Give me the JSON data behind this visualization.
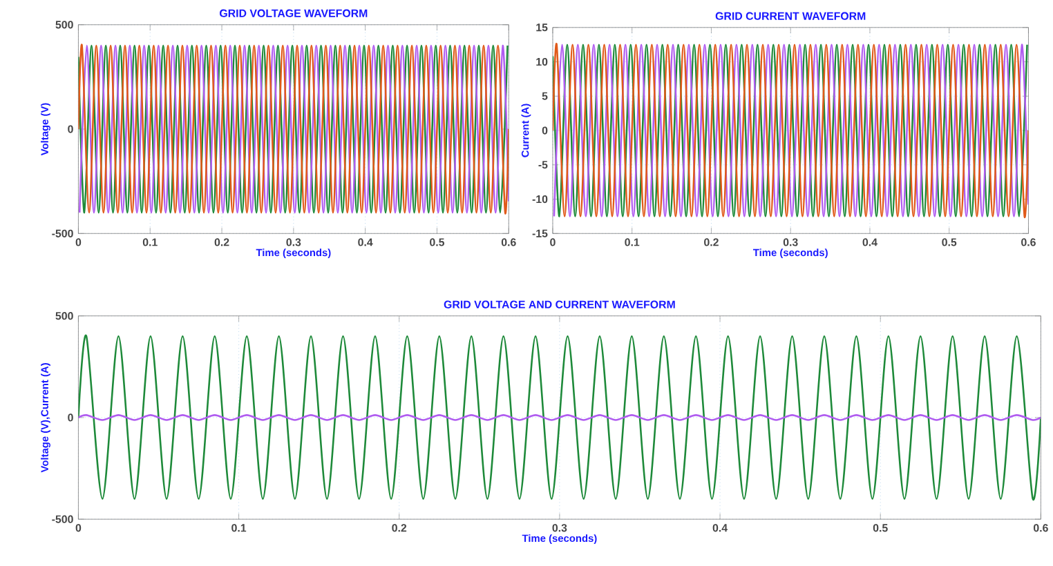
{
  "chart_data": [
    {
      "type": "line",
      "title": "GRID VOLTAGE WAVEFORM",
      "xlabel": "Time (seconds)",
      "ylabel": "Voltage (V)",
      "xlim": [
        0,
        0.6
      ],
      "ylim": [
        -500,
        500
      ],
      "xticks": [
        0,
        0.1,
        0.2,
        0.3,
        0.4,
        0.5,
        0.6
      ],
      "yticks": [
        -500,
        0,
        500
      ],
      "grid": true,
      "x": [
        0,
        0.005,
        0.015,
        0.025,
        0.035,
        0.045,
        0.055,
        0.065,
        0.075,
        0.085,
        0.095,
        0.105,
        0.115,
        0.125,
        0.135,
        0.145,
        0.155,
        0.165,
        0.175,
        0.185,
        0.195,
        0.205,
        0.215,
        0.225,
        0.235,
        0.245,
        0.255,
        0.265,
        0.275,
        0.285,
        0.295,
        0.305,
        0.315,
        0.325,
        0.335,
        0.345,
        0.355,
        0.365,
        0.375,
        0.385,
        0.395,
        0.405,
        0.415,
        0.425,
        0.435,
        0.445,
        0.455,
        0.465,
        0.475,
        0.485,
        0.495,
        0.505,
        0.515,
        0.525,
        0.535,
        0.545,
        0.555,
        0.565,
        0.575,
        0.585,
        0.595,
        0.6
      ],
      "series": [
        {
          "color": "#1e8a3a",
          "x": [
            0,
            0.0083,
            0.0183,
            0.0283,
            0.0383,
            0.0483,
            0.0583,
            0.0683,
            0.0783,
            0.0883,
            0.0983,
            0.1083,
            0.1183,
            0.1283,
            0.1383,
            0.1483,
            0.1583,
            0.1683,
            0.1783,
            0.1883,
            0.1983,
            0.2083,
            0.2183,
            0.2283,
            0.2383,
            0.2483,
            0.2583,
            0.2683,
            0.2783,
            0.2883,
            0.2983,
            0.3083,
            0.3183,
            0.3283,
            0.3383,
            0.3483,
            0.3583,
            0.3683,
            0.3783,
            0.3883,
            0.3983,
            0.4083,
            0.4183,
            0.4283,
            0.4383,
            0.4483,
            0.4583,
            0.4683,
            0.4783,
            0.4883,
            0.4983,
            0.5083,
            0.5183,
            0.5283,
            0.5383,
            0.5483,
            0.5583,
            0.5683,
            0.5783,
            0.5883,
            0.5983
          ],
          "values": [
            346,
            -400,
            400,
            -400,
            400,
            -400,
            400,
            -400,
            400,
            -400,
            400,
            -400,
            400,
            -400,
            400,
            -400,
            400,
            -400,
            400,
            -400,
            400,
            -400,
            400,
            -400,
            400,
            -400,
            400,
            -400,
            400,
            -400,
            400,
            -400,
            400,
            -400,
            400,
            -400,
            400,
            -400,
            400,
            -400,
            400,
            -400,
            400,
            -400,
            400,
            -400,
            400,
            -400,
            400,
            -400,
            400,
            -400,
            400,
            -400,
            400,
            -400,
            400,
            -400,
            400,
            -400,
            400
          ]
        },
        {
          "color": "#b05cf0",
          "x": [
            0.0017,
            0.0117,
            0.0217,
            0.0317,
            0.0417,
            0.0517,
            0.0617,
            0.0717,
            0.0817,
            0.0917,
            0.1017,
            0.1117,
            0.1217,
            0.1317,
            0.1417,
            0.1517,
            0.1617,
            0.1717,
            0.1817,
            0.1917,
            0.2017,
            0.2117,
            0.2217,
            0.2317,
            0.2417,
            0.2517,
            0.2617,
            0.2717,
            0.2817,
            0.2917,
            0.3017,
            0.3117,
            0.3217,
            0.3317,
            0.3417,
            0.3517,
            0.3617,
            0.3717,
            0.3817,
            0.3917,
            0.4017,
            0.4117,
            0.4217,
            0.4317,
            0.4417,
            0.4517,
            0.4617,
            0.4717,
            0.4817,
            0.4917,
            0.5017,
            0.5117,
            0.5217,
            0.5317,
            0.5417,
            0.5517,
            0.5617,
            0.5717,
            0.5817,
            0.5917,
            0.6
          ],
          "values": [
            -400,
            400,
            -400,
            400,
            -400,
            400,
            -400,
            400,
            -400,
            400,
            -400,
            400,
            -400,
            400,
            -400,
            400,
            -400,
            400,
            -400,
            400,
            -400,
            400,
            -400,
            400,
            -400,
            400,
            -400,
            400,
            -400,
            400,
            -400,
            400,
            -400,
            400,
            -400,
            400,
            -400,
            400,
            -400,
            400,
            -400,
            400,
            -400,
            400,
            -400,
            400,
            -400,
            400,
            -400,
            400,
            -400,
            400,
            -400,
            400,
            -400,
            400,
            -400,
            400,
            -400,
            400,
            -346
          ]
        },
        {
          "color": "#e05a1a",
          "values": [
            0,
            400,
            -400,
            400,
            -400,
            400,
            -400,
            400,
            -400,
            400,
            -400,
            400,
            -400,
            400,
            -400,
            400,
            -400,
            400,
            -400,
            400,
            -400,
            400,
            -400,
            400,
            -400,
            400,
            -400,
            400,
            -400,
            400,
            -400,
            400,
            -400,
            400,
            -400,
            400,
            -400,
            400,
            -400,
            400,
            -400,
            400,
            -400,
            400,
            -400,
            400,
            -400,
            400,
            -400,
            400,
            -400,
            400,
            -400,
            400,
            -400,
            400,
            -400,
            400,
            -400,
            400,
            -400,
            0
          ]
        }
      ]
    },
    {
      "type": "line",
      "title": "GRID CURRENT WAVEFORM",
      "xlabel": "Time (seconds)",
      "ylabel": "Current (A)",
      "xlim": [
        0,
        0.6
      ],
      "ylim": [
        -15,
        15
      ],
      "xticks": [
        0,
        0.1,
        0.2,
        0.3,
        0.4,
        0.5,
        0.6
      ],
      "yticks": [
        -15,
        -10,
        -5,
        0,
        5,
        10,
        15
      ],
      "grid": true,
      "x": [
        0,
        0.005,
        0.015,
        0.025,
        0.035,
        0.045,
        0.055,
        0.065,
        0.075,
        0.085,
        0.095,
        0.105,
        0.115,
        0.125,
        0.135,
        0.145,
        0.155,
        0.165,
        0.175,
        0.185,
        0.195,
        0.205,
        0.215,
        0.225,
        0.235,
        0.245,
        0.255,
        0.265,
        0.275,
        0.285,
        0.295,
        0.305,
        0.315,
        0.325,
        0.335,
        0.345,
        0.355,
        0.365,
        0.375,
        0.385,
        0.395,
        0.405,
        0.415,
        0.425,
        0.435,
        0.445,
        0.455,
        0.465,
        0.475,
        0.485,
        0.495,
        0.505,
        0.515,
        0.525,
        0.535,
        0.545,
        0.555,
        0.565,
        0.575,
        0.585,
        0.595,
        0.6
      ],
      "series": [
        {
          "color": "#1e8a3a",
          "x": [
            0,
            0.0083,
            0.0183,
            0.0283,
            0.0383,
            0.0483,
            0.0583,
            0.0683,
            0.0783,
            0.0883,
            0.0983,
            0.1083,
            0.1183,
            0.1283,
            0.1383,
            0.1483,
            0.1583,
            0.1683,
            0.1783,
            0.1883,
            0.1983,
            0.2083,
            0.2183,
            0.2283,
            0.2383,
            0.2483,
            0.2583,
            0.2683,
            0.2783,
            0.2883,
            0.2983,
            0.3083,
            0.3183,
            0.3283,
            0.3383,
            0.3483,
            0.3583,
            0.3683,
            0.3783,
            0.3883,
            0.3983,
            0.4083,
            0.4183,
            0.4283,
            0.4383,
            0.4483,
            0.4583,
            0.4683,
            0.4783,
            0.4883,
            0.4983,
            0.5083,
            0.5183,
            0.5283,
            0.5383,
            0.5483,
            0.5583,
            0.5683,
            0.5783,
            0.5883,
            0.5983
          ],
          "values": [
            10.8,
            -12.5,
            12.5,
            -12.5,
            12.5,
            -12.5,
            12.5,
            -12.5,
            12.5,
            -12.5,
            12.5,
            -12.5,
            12.5,
            -12.5,
            12.5,
            -12.5,
            12.5,
            -12.5,
            12.5,
            -12.5,
            12.5,
            -12.5,
            12.5,
            -12.5,
            12.5,
            -12.5,
            12.5,
            -12.5,
            12.5,
            -12.5,
            12.5,
            -12.5,
            12.5,
            -12.5,
            12.5,
            -12.5,
            12.5,
            -12.5,
            12.5,
            -12.5,
            12.5,
            -12.5,
            12.5,
            -12.5,
            12.5,
            -12.5,
            12.5,
            -12.5,
            12.5,
            -12.5,
            12.5,
            -12.5,
            12.5,
            -12.5,
            12.5,
            -12.5,
            12.5,
            -12.5,
            12.5,
            -12.5,
            12.5
          ]
        },
        {
          "color": "#b05cf0",
          "x": [
            0.0017,
            0.0117,
            0.0217,
            0.0317,
            0.0417,
            0.0517,
            0.0617,
            0.0717,
            0.0817,
            0.0917,
            0.1017,
            0.1117,
            0.1217,
            0.1317,
            0.1417,
            0.1517,
            0.1617,
            0.1717,
            0.1817,
            0.1917,
            0.2017,
            0.2117,
            0.2217,
            0.2317,
            0.2417,
            0.2517,
            0.2617,
            0.2717,
            0.2817,
            0.2917,
            0.3017,
            0.3117,
            0.3217,
            0.3317,
            0.3417,
            0.3517,
            0.3617,
            0.3717,
            0.3817,
            0.3917,
            0.4017,
            0.4117,
            0.4217,
            0.4317,
            0.4417,
            0.4517,
            0.4617,
            0.4717,
            0.4817,
            0.4917,
            0.5017,
            0.5117,
            0.5217,
            0.5317,
            0.5417,
            0.5517,
            0.5617,
            0.5717,
            0.5817,
            0.5917,
            0.6
          ],
          "values": [
            -12.5,
            12.5,
            -12.5,
            12.5,
            -12.5,
            12.5,
            -12.5,
            12.5,
            -12.5,
            12.5,
            -12.5,
            12.5,
            -12.5,
            12.5,
            -12.5,
            12.5,
            -12.5,
            12.5,
            -12.5,
            12.5,
            -12.5,
            12.5,
            -12.5,
            12.5,
            -12.5,
            12.5,
            -12.5,
            12.5,
            -12.5,
            12.5,
            -12.5,
            12.5,
            -12.5,
            12.5,
            -12.5,
            12.5,
            -12.5,
            12.5,
            -12.5,
            12.5,
            -12.5,
            12.5,
            -12.5,
            12.5,
            -12.5,
            12.5,
            -12.5,
            12.5,
            -12.5,
            12.5,
            -12.5,
            12.5,
            -12.5,
            12.5,
            -12.5,
            12.5,
            -12.5,
            12.5,
            -12.5,
            12.5,
            -10.8
          ]
        },
        {
          "color": "#e05a1a",
          "values": [
            0,
            12.5,
            -12.5,
            12.5,
            -12.5,
            12.5,
            -12.5,
            12.5,
            -12.5,
            12.5,
            -12.5,
            12.5,
            -12.5,
            12.5,
            -12.5,
            12.5,
            -12.5,
            12.5,
            -12.5,
            12.5,
            -12.5,
            12.5,
            -12.5,
            12.5,
            -12.5,
            12.5,
            -12.5,
            12.5,
            -12.5,
            12.5,
            -12.5,
            12.5,
            -12.5,
            12.5,
            -12.5,
            12.5,
            -12.5,
            12.5,
            -12.5,
            12.5,
            -12.5,
            12.5,
            -12.5,
            12.5,
            -12.5,
            12.5,
            -12.5,
            12.5,
            -12.5,
            12.5,
            -12.5,
            12.5,
            -12.5,
            12.5,
            -12.5,
            12.5,
            -12.5,
            12.5,
            -12.5,
            12.5,
            -12.5,
            0
          ]
        }
      ]
    },
    {
      "type": "line",
      "title": "GRID VOLTAGE AND CURRENT WAVEFORM",
      "xlabel": "Time (seconds)",
      "ylabel": "Voltage (V),Current (A)",
      "xlim": [
        0,
        0.6
      ],
      "ylim": [
        -500,
        500
      ],
      "xticks": [
        0,
        0.1,
        0.2,
        0.3,
        0.4,
        0.5,
        0.6
      ],
      "yticks": [
        -500,
        0,
        500
      ],
      "grid": true,
      "x": [
        0,
        0.005,
        0.015,
        0.025,
        0.035,
        0.045,
        0.055,
        0.065,
        0.075,
        0.085,
        0.095,
        0.105,
        0.115,
        0.125,
        0.135,
        0.145,
        0.155,
        0.165,
        0.175,
        0.185,
        0.195,
        0.205,
        0.215,
        0.225,
        0.235,
        0.245,
        0.255,
        0.265,
        0.275,
        0.285,
        0.295,
        0.305,
        0.315,
        0.325,
        0.335,
        0.345,
        0.355,
        0.365,
        0.375,
        0.385,
        0.395,
        0.405,
        0.415,
        0.425,
        0.435,
        0.445,
        0.455,
        0.465,
        0.475,
        0.485,
        0.495,
        0.505,
        0.515,
        0.525,
        0.535,
        0.545,
        0.555,
        0.565,
        0.575,
        0.585,
        0.595,
        0.6
      ],
      "series": [
        {
          "color": "#1e8a3a",
          "values": [
            0,
            400,
            -400,
            400,
            -400,
            400,
            -400,
            400,
            -400,
            400,
            -400,
            400,
            -400,
            400,
            -400,
            400,
            -400,
            400,
            -400,
            400,
            -400,
            400,
            -400,
            400,
            -400,
            400,
            -400,
            400,
            -400,
            400,
            -400,
            400,
            -400,
            400,
            -400,
            400,
            -400,
            400,
            -400,
            400,
            -400,
            400,
            -400,
            400,
            -400,
            400,
            -400,
            400,
            -400,
            400,
            -400,
            400,
            -400,
            400,
            -400,
            400,
            -400,
            400,
            -400,
            400,
            -400,
            0
          ]
        },
        {
          "color": "#b05cf0",
          "values": [
            0,
            12,
            -12,
            12,
            -12,
            12,
            -12,
            12,
            -12,
            12,
            -12,
            12,
            -12,
            12,
            -12,
            12,
            -12,
            12,
            -12,
            12,
            -12,
            12,
            -12,
            12,
            -12,
            12,
            -12,
            12,
            -12,
            12,
            -12,
            12,
            -12,
            12,
            -12,
            12,
            -12,
            12,
            -12,
            12,
            -12,
            12,
            -12,
            12,
            -12,
            12,
            -12,
            12,
            -12,
            12,
            -12,
            12,
            -12,
            12,
            -12,
            12,
            -12,
            12,
            -12,
            12,
            -12,
            0
          ]
        }
      ]
    }
  ]
}
